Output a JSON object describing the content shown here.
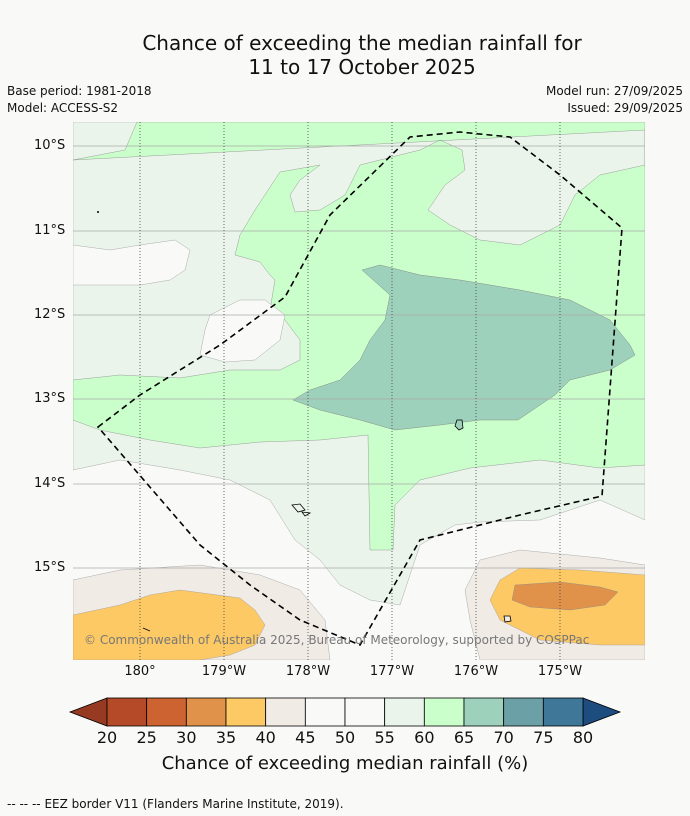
{
  "title_line1": "Chance of exceeding the median rainfall for",
  "title_line2": "11 to 17 October 2025",
  "base_period": "Base period: 1981-2018",
  "model": "Model: ACCESS-S2",
  "model_run": "Model run: 27/09/2025",
  "issued": "Issued: 29/09/2025",
  "lat_labels": [
    "10°S",
    "11°S",
    "12°S",
    "13°S",
    "14°S",
    "15°S"
  ],
  "lon_labels": [
    "180°",
    "179°W",
    "178°W",
    "177°W",
    "176°W",
    "175°W"
  ],
  "copyright": "© Commonwealth of Australia 2025, Bureau of Meteorology, supported by COSPPac",
  "colorbar": {
    "ticks": [
      "20",
      "25",
      "30",
      "35",
      "40",
      "45",
      "50",
      "55",
      "60",
      "65",
      "70",
      "75",
      "80"
    ],
    "colors": [
      "#b44a28",
      "#cc6331",
      "#e0924a",
      "#fdc964",
      "#f1ebe6",
      "#f9faf8",
      "#f9faf8",
      "#eaf4ea",
      "#caffcb",
      "#9dd1bb",
      "#6ba1a6",
      "#3e7797"
    ],
    "under_color": "#963b22",
    "over_color": "#1d4c7f",
    "label": "Chance of exceeding median rainfall (%)"
  },
  "legend_symbol": "--  --  --",
  "legend_text": "EEZ border V11 (Flanders Marine Institute, 2019)."
}
